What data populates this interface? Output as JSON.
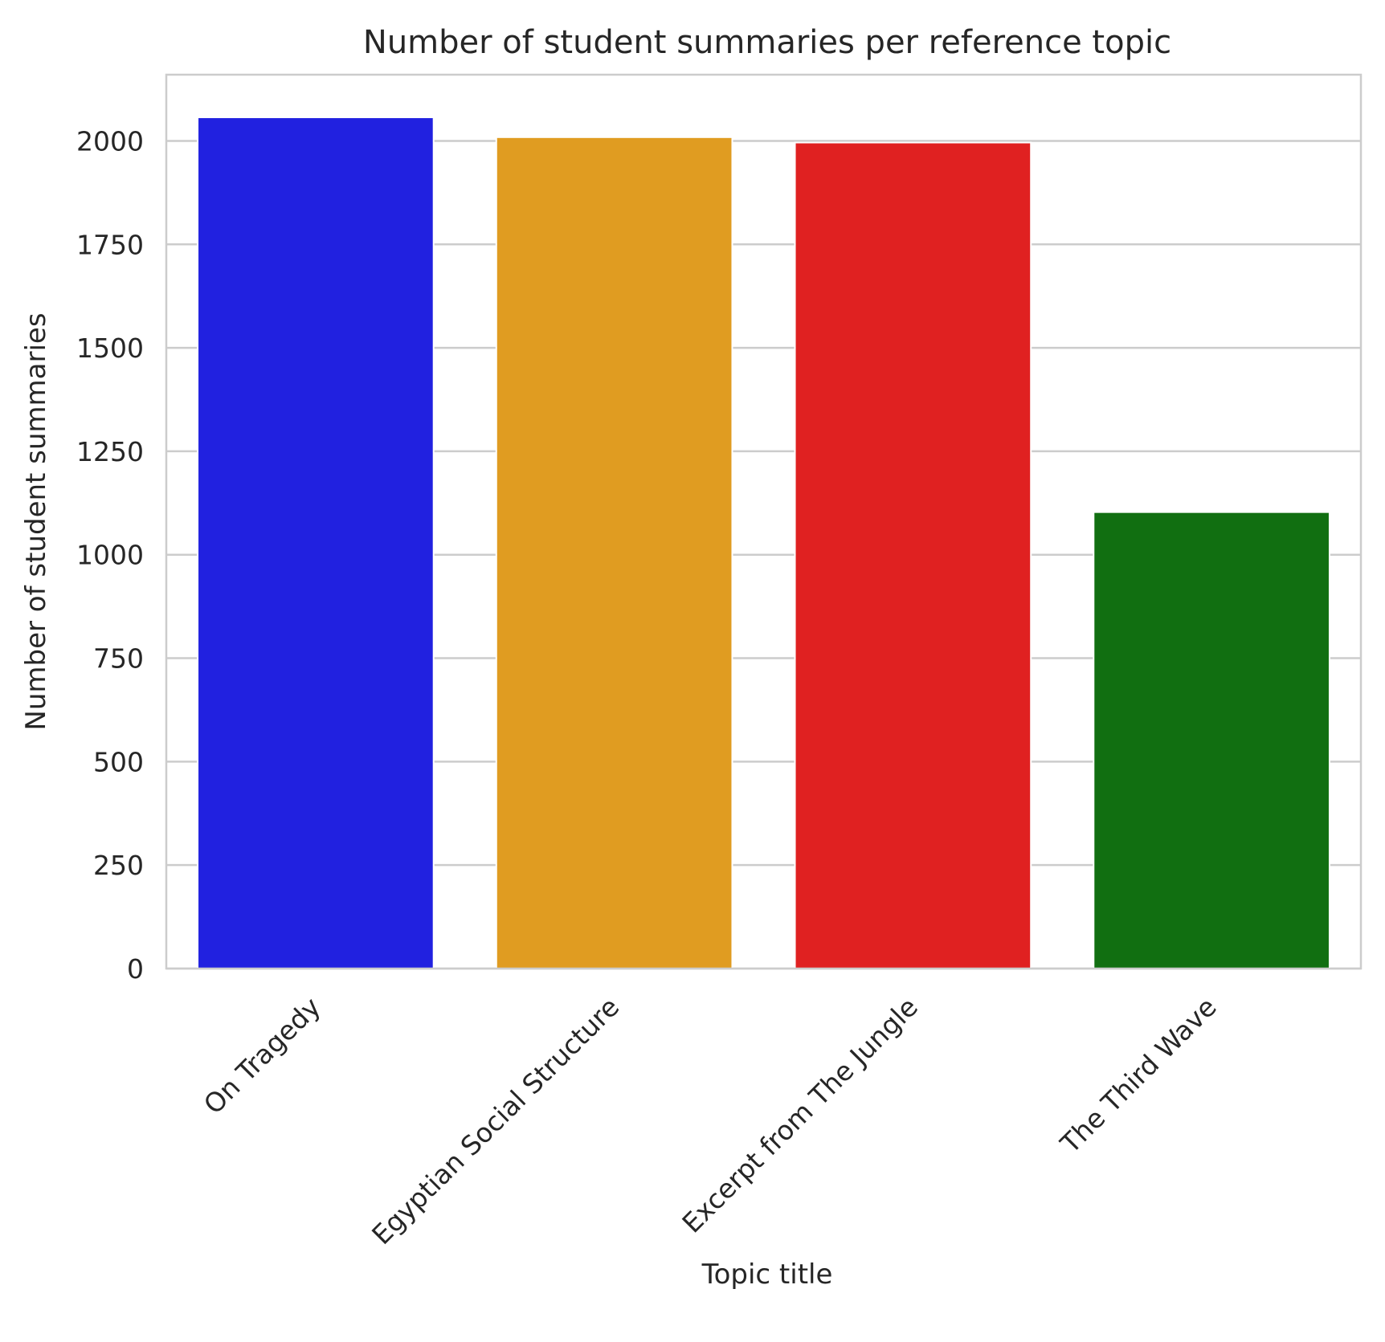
{
  "chart_data": {
    "type": "bar",
    "title": "Number of student summaries per reference topic",
    "xlabel": "Topic title",
    "ylabel": "Number of student summaries",
    "categories": [
      "On Tragedy",
      "Egyptian Social Structure",
      "Excerpt from The Jungle",
      "The Third Wave"
    ],
    "values": [
      2057,
      2009,
      1996,
      1103
    ],
    "colors": [
      "#2121e0",
      "#e09c21",
      "#e02121",
      "#116f11"
    ],
    "yticks": [
      0,
      250,
      500,
      750,
      1000,
      1250,
      1500,
      1750,
      2000
    ],
    "ylim": [
      0,
      2160
    ],
    "grid": true,
    "grid_axis": "y",
    "legend": false,
    "xtick_rotation": 45
  }
}
